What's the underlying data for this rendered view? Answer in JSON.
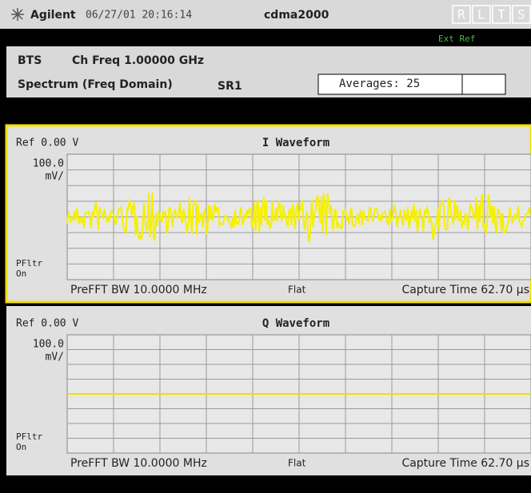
{
  "header": {
    "logo_text": "Agilent",
    "datetime": "06/27/01 20:16:14",
    "mode": "cdma2000",
    "indicators": [
      "R",
      "L",
      "T",
      "S"
    ],
    "ext_ref": "Ext Ref"
  },
  "settings": {
    "device": "BTS",
    "ch_freq": "Ch Freq 1.00000 GHz",
    "measurement": "Spectrum (Freq Domain)",
    "radio_config": "SR1",
    "averages": "Averages: 25"
  },
  "panels": [
    {
      "ref": "Ref 0.00 V",
      "title": "I Waveform",
      "scale": "100.0",
      "scale_unit": "mV/",
      "filter": "PFltr",
      "filter_state": "On",
      "bw": "PreFFT BW 10.0000 MHz",
      "window": "Flat",
      "capture": "Capture Time 62.70 µs"
    },
    {
      "ref": "Ref 0.00 V",
      "title": "Q Waveform",
      "scale": "100.0",
      "scale_unit": "mV/",
      "filter": "PFltr",
      "filter_state": "On",
      "bw": "PreFFT BW 10.0000 MHz",
      "window": "Flat",
      "capture": "Capture Time 62.70 µs"
    }
  ]
}
